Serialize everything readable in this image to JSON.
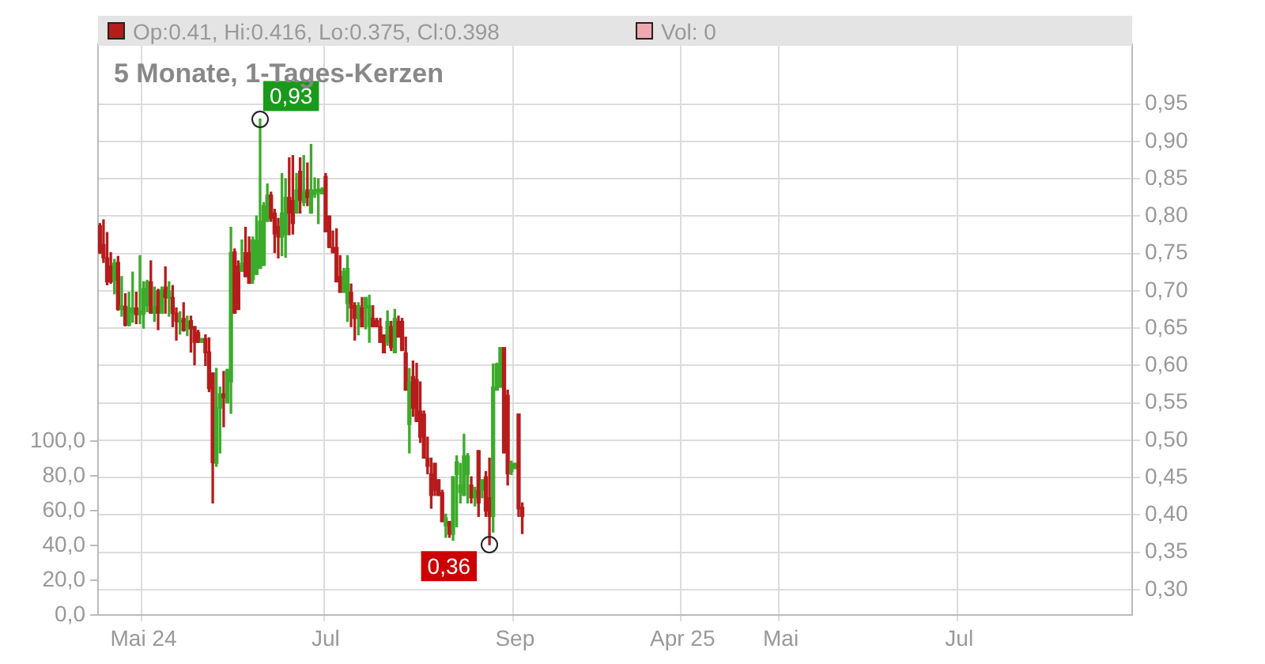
{
  "chart_data": {
    "type": "candlestick",
    "title": "5 Monate, 1-Tages-Kerzen",
    "categories": [
      null,
      null,
      null,
      null,
      null,
      null,
      null,
      null,
      null,
      null,
      null,
      null,
      "Mai 24",
      null,
      null,
      null,
      null,
      null,
      null,
      null,
      null,
      null,
      null,
      null,
      null,
      null,
      null,
      null,
      null,
      null,
      null,
      null,
      null,
      null,
      null,
      null,
      null,
      null,
      null,
      null,
      null,
      null,
      null,
      null,
      null,
      null,
      null,
      null,
      null,
      null,
      null,
      null,
      null,
      null,
      null,
      null,
      null,
      null,
      null,
      null,
      null,
      null,
      "Jul",
      null,
      null,
      null,
      null,
      null,
      null,
      null,
      null,
      null,
      null,
      null,
      null,
      null,
      null,
      null,
      null,
      null,
      null,
      null,
      null,
      null,
      null,
      null,
      null,
      null,
      null,
      null,
      null,
      null,
      null,
      null,
      null,
      null,
      null,
      null,
      null,
      null,
      null,
      null,
      null,
      null,
      null,
      null,
      null,
      null,
      null,
      null,
      null,
      null,
      null,
      null,
      "Sep",
      null,
      null,
      null,
      null,
      null,
      null,
      null,
      null,
      null,
      null,
      null,
      null,
      null,
      null,
      null,
      null,
      null,
      null,
      null,
      null,
      null,
      null,
      null,
      null,
      null,
      null,
      null,
      null,
      null,
      null,
      null,
      null,
      null,
      null,
      null,
      null,
      null,
      null,
      null,
      null,
      null,
      null,
      null,
      null,
      null,
      "Apr 25",
      null,
      null,
      null,
      null,
      null,
      null,
      null,
      null,
      null,
      null,
      null,
      null,
      null,
      null,
      null,
      null,
      null,
      null,
      null,
      null,
      null,
      null,
      null,
      null,
      null,
      null,
      "Mai",
      null,
      null,
      null,
      null,
      null,
      null,
      null,
      null,
      null,
      null,
      null,
      null,
      null,
      null,
      null,
      null,
      null,
      null,
      null,
      null,
      null,
      null,
      null,
      null,
      null,
      null,
      null,
      null,
      null,
      null,
      null,
      null,
      null,
      null,
      null,
      null,
      null,
      null,
      null,
      null,
      null,
      null,
      null,
      null,
      null,
      null,
      null,
      null,
      "Jul",
      null,
      null,
      null,
      null,
      null,
      null,
      null,
      null,
      null,
      null,
      null,
      null,
      null,
      null,
      null,
      null,
      null,
      null,
      null,
      null,
      null,
      null,
      null,
      null,
      null,
      null,
      null,
      null,
      null,
      null,
      null,
      null,
      null,
      null,
      null,
      null,
      null,
      null,
      null,
      null,
      null,
      null,
      null,
      null,
      null,
      null,
      null
    ],
    "ohlc": [
      [
        0.787,
        0.79,
        0.75,
        0.751
      ],
      [
        0.762,
        0.795,
        0.738,
        0.744
      ],
      [
        0.744,
        0.778,
        0.708,
        0.712
      ],
      [
        0.733,
        0.751,
        0.71,
        0.712
      ],
      [
        0.714,
        0.742,
        0.696,
        0.737
      ],
      [
        0.738,
        0.746,
        0.674,
        0.675
      ],
      [
        0.675,
        0.719,
        0.666,
        0.68
      ],
      [
        0.679,
        0.696,
        0.653,
        0.654
      ],
      [
        0.654,
        0.698,
        0.653,
        0.677
      ],
      [
        0.67,
        0.725,
        0.658,
        0.677
      ],
      [
        0.677,
        0.698,
        0.656,
        0.668
      ],
      [
        0.668,
        0.747,
        0.656,
        0.673
      ],
      [
        0.669,
        0.712,
        0.65,
        0.703
      ],
      [
        0.68,
        0.714,
        0.672,
        0.712
      ],
      [
        0.712,
        0.74,
        0.67,
        0.67
      ],
      [
        0.67,
        0.705,
        0.659,
        0.679
      ],
      [
        0.7,
        0.702,
        0.648,
        0.67
      ],
      [
        0.67,
        0.705,
        0.67,
        0.701
      ],
      [
        0.705,
        0.732,
        0.67,
        0.691
      ],
      [
        0.69,
        0.712,
        0.666,
        0.7
      ],
      [
        0.691,
        0.707,
        0.652,
        0.67
      ],
      [
        0.67,
        0.677,
        0.634,
        0.659
      ],
      [
        0.658,
        0.672,
        0.642,
        0.66
      ],
      [
        0.663,
        0.684,
        0.646,
        0.647
      ],
      [
        0.649,
        0.666,
        0.64,
        0.659
      ],
      [
        0.66,
        0.666,
        0.618,
        0.649
      ],
      [
        0.652,
        0.652,
        0.601,
        0.631
      ],
      [
        0.644,
        0.647,
        0.631,
        0.631
      ],
      [
        0.631,
        0.636,
        0.631,
        0.636
      ],
      [
        0.636,
        0.641,
        0.6,
        0.617
      ],
      [
        0.618,
        0.637,
        0.565,
        0.569
      ],
      [
        0.59,
        0.59,
        0.416,
        0.47
      ],
      [
        0.469,
        0.596,
        0.465,
        0.543
      ],
      [
        0.543,
        0.571,
        0.483,
        0.562
      ],
      [
        0.562,
        0.592,
        0.518,
        0.557
      ],
      [
        0.55,
        0.595,
        0.55,
        0.594
      ],
      [
        0.578,
        0.785,
        0.536,
        0.751
      ],
      [
        0.752,
        0.756,
        0.67,
        0.67
      ],
      [
        0.733,
        0.74,
        0.675,
        0.675
      ],
      [
        0.726,
        0.768,
        0.726,
        0.737
      ],
      [
        0.751,
        0.785,
        0.719,
        0.719
      ],
      [
        0.751,
        0.772,
        0.71,
        0.71
      ],
      [
        0.715,
        0.772,
        0.71,
        0.768
      ],
      [
        0.722,
        0.8,
        0.722,
        0.768
      ],
      [
        0.73,
        0.93,
        0.73,
        0.793
      ],
      [
        0.734,
        0.818,
        0.734,
        0.814
      ],
      [
        0.793,
        0.843,
        0.793,
        0.828
      ],
      [
        0.828,
        0.832,
        0.793,
        0.797
      ],
      [
        0.804,
        0.809,
        0.751,
        0.776
      ],
      [
        0.786,
        0.797,
        0.744,
        0.772
      ],
      [
        0.772,
        0.857,
        0.747,
        0.804
      ],
      [
        0.775,
        0.85,
        0.745,
        0.825
      ],
      [
        0.825,
        0.878,
        0.775,
        0.804
      ],
      [
        0.821,
        0.881,
        0.776,
        0.79
      ],
      [
        0.804,
        0.857,
        0.804,
        0.835
      ],
      [
        0.86,
        0.878,
        0.804,
        0.821
      ],
      [
        0.818,
        0.881,
        0.814,
        0.832
      ],
      [
        0.835,
        0.871,
        0.814,
        0.825
      ],
      [
        0.804,
        0.896,
        0.804,
        0.835
      ],
      [
        0.829,
        0.851,
        0.825,
        0.835
      ],
      [
        0.832,
        0.85,
        0.79,
        0.836
      ],
      [
        0.83,
        0.838,
        0.83,
        0.836
      ],
      [
        0.853,
        0.857,
        0.779,
        0.779
      ],
      [
        0.8,
        0.8,
        0.758,
        0.758
      ],
      [
        0.758,
        0.78,
        0.751,
        0.751
      ],
      [
        0.758,
        0.783,
        0.712,
        0.712
      ],
      [
        0.719,
        0.747,
        0.698,
        0.698
      ],
      [
        0.698,
        0.73,
        0.698,
        0.726
      ],
      [
        0.683,
        0.747,
        0.659,
        0.73
      ],
      [
        0.698,
        0.709,
        0.652,
        0.677
      ],
      [
        0.68,
        0.684,
        0.634,
        0.663
      ],
      [
        0.663,
        0.684,
        0.641,
        0.68
      ],
      [
        0.677,
        0.691,
        0.652,
        0.652
      ],
      [
        0.677,
        0.691,
        0.649,
        0.691
      ],
      [
        0.652,
        0.694,
        0.631,
        0.68
      ],
      [
        0.663,
        0.68,
        0.652,
        0.652
      ],
      [
        0.66,
        0.663,
        0.652,
        0.652
      ],
      [
        0.652,
        0.663,
        0.631,
        0.631
      ],
      [
        0.641,
        0.641,
        0.617,
        0.617
      ],
      [
        0.631,
        0.673,
        0.627,
        0.659
      ],
      [
        0.652,
        0.659,
        0.62,
        0.624
      ],
      [
        0.617,
        0.675,
        0.617,
        0.663
      ],
      [
        0.659,
        0.666,
        0.638,
        0.638
      ],
      [
        0.659,
        0.663,
        0.62,
        0.62
      ],
      [
        0.617,
        0.638,
        0.567,
        0.567
      ],
      [
        0.521,
        0.596,
        0.483,
        0.578
      ],
      [
        0.585,
        0.606,
        0.532,
        0.543
      ],
      [
        0.581,
        0.603,
        0.525,
        0.525
      ],
      [
        0.539,
        0.578,
        0.497,
        0.504
      ],
      [
        0.535,
        0.539,
        0.476,
        0.476
      ],
      [
        0.476,
        0.504,
        0.455,
        0.465
      ],
      [
        0.455,
        0.476,
        0.409,
        0.426
      ],
      [
        0.469,
        0.469,
        0.426,
        0.433
      ],
      [
        0.447,
        0.447,
        0.426,
        0.426
      ],
      [
        0.43,
        0.433,
        0.391,
        0.391
      ],
      [
        0.385,
        0.401,
        0.37,
        0.396
      ],
      [
        0.391,
        0.391,
        0.37,
        0.374
      ],
      [
        0.374,
        0.451,
        0.366,
        0.451
      ],
      [
        0.454,
        0.479,
        0.384,
        0.471
      ],
      [
        0.43,
        0.469,
        0.416,
        0.44
      ],
      [
        0.426,
        0.508,
        0.426,
        0.479
      ],
      [
        0.454,
        0.482,
        0.416,
        0.479
      ],
      [
        0.44,
        0.451,
        0.416,
        0.423
      ],
      [
        0.423,
        0.437,
        0.412,
        0.433
      ],
      [
        0.486,
        0.486,
        0.398,
        0.416
      ],
      [
        0.433,
        0.447,
        0.423,
        0.447
      ],
      [
        0.451,
        0.458,
        0.398,
        0.405
      ],
      [
        0.423,
        0.476,
        0.36,
        0.398
      ],
      [
        0.398,
        0.602,
        0.377,
        0.571
      ],
      [
        0.567,
        0.603,
        0.567,
        0.602
      ],
      [
        0.571,
        0.624,
        0.571,
        0.624
      ],
      [
        0.624,
        0.624,
        0.483,
        0.483
      ],
      [
        0.56,
        0.567,
        0.44,
        0.455
      ],
      [
        0.458,
        0.472,
        0.454,
        0.469
      ],
      [
        0.462,
        0.469,
        0.462,
        0.469
      ],
      [
        0.535,
        0.535,
        0.398,
        0.408
      ],
      [
        0.41,
        0.416,
        0.375,
        0.398
      ],
      null,
      null,
      null,
      null,
      null,
      null,
      null,
      null,
      null,
      null,
      null,
      null,
      null,
      null,
      null,
      null,
      null,
      null,
      null,
      null,
      null,
      null,
      null,
      null,
      null,
      null,
      null,
      null,
      null,
      null,
      null,
      null,
      null,
      null,
      null,
      null,
      null,
      null,
      null,
      null,
      null,
      null,
      null,
      null,
      null,
      null,
      null,
      null,
      null,
      null,
      null,
      null,
      null,
      null,
      null,
      null,
      null,
      null,
      null,
      null,
      null,
      null,
      null,
      null,
      null,
      null,
      null,
      null,
      null,
      null,
      null,
      null,
      null,
      null,
      null,
      null,
      null,
      null,
      null,
      null,
      null,
      null,
      null,
      null,
      null,
      null,
      null,
      null,
      null,
      null,
      null,
      null,
      null,
      null,
      null,
      null,
      null,
      null,
      null,
      null,
      null,
      null,
      null,
      null,
      null,
      null,
      null,
      null,
      null,
      null,
      null,
      null,
      null,
      null,
      null,
      null,
      null,
      null,
      null,
      null,
      null,
      null,
      null,
      null,
      null,
      null,
      null,
      null,
      null,
      null,
      null,
      null,
      null,
      null,
      null,
      null,
      null,
      null,
      null,
      null,
      null,
      null,
      null,
      null,
      null,
      null,
      null,
      null,
      null,
      null,
      null,
      null,
      null,
      null,
      null,
      null,
      null,
      null,
      null,
      null,
      null,
      null,
      null,
      null,
      null,
      null,
      null
    ],
    "colors": [
      "#b71c1c",
      "#b71c1c",
      "#b71c1c",
      "#b71c1c",
      "#3cab2b",
      "#b71c1c",
      "#3cab2b",
      "#b71c1c",
      "#3cab2b",
      "#3cab2b",
      "#b71c1c",
      "#3cab2b",
      "#3cab2b",
      "#3cab2b",
      "#b71c1c",
      "#3cab2b",
      "#b71c1c",
      "#3cab2b",
      "#b71c1c",
      "#3cab2b",
      "#b71c1c",
      "#b71c1c",
      "#3cab2b",
      "#b71c1c",
      "#3cab2b",
      "#b71c1c",
      "#b71c1c",
      "#b71c1c",
      "#3cab2b",
      "#b71c1c",
      "#b71c1c",
      "#b71c1c",
      "#3cab2b",
      "#3cab2b",
      "#b71c1c",
      "#3cab2b",
      "#3cab2b",
      "#b71c1c",
      "#b71c1c",
      "#3cab2b",
      "#b71c1c",
      "#b71c1c",
      "#3cab2b",
      "#3cab2b",
      "#3cab2b",
      "#3cab2b",
      "#3cab2b",
      "#b71c1c",
      "#b71c1c",
      "#b71c1c",
      "#3cab2b",
      "#3cab2b",
      "#b71c1c",
      "#b71c1c",
      "#3cab2b",
      "#b71c1c",
      "#3cab2b",
      "#b71c1c",
      "#3cab2b",
      "#3cab2b",
      "#3cab2b",
      "#3cab2b",
      "#b71c1c",
      "#b71c1c",
      "#b71c1c",
      "#b71c1c",
      "#b71c1c",
      "#3cab2b",
      "#3cab2b",
      "#b71c1c",
      "#b71c1c",
      "#3cab2b",
      "#b71c1c",
      "#3cab2b",
      "#3cab2b",
      "#b71c1c",
      "#b71c1c",
      "#b71c1c",
      "#b71c1c",
      "#3cab2b",
      "#b71c1c",
      "#3cab2b",
      "#b71c1c",
      "#b71c1c",
      "#b71c1c",
      "#3cab2b",
      "#b71c1c",
      "#b71c1c",
      "#b71c1c",
      "#b71c1c",
      "#b71c1c",
      "#b71c1c",
      "#b71c1c",
      "#b71c1c",
      "#b71c1c",
      "#3cab2b",
      "#b71c1c",
      "#3cab2b",
      "#3cab2b",
      "#3cab2b",
      "#3cab2b",
      "#3cab2b",
      "#b71c1c",
      "#3cab2b",
      "#b71c1c",
      "#3cab2b",
      "#b71c1c",
      "#b71c1c",
      "#3cab2b",
      "#3cab2b",
      "#3cab2b",
      "#b71c1c",
      "#b71c1c",
      "#3cab2b",
      "#3cab2b",
      "#b71c1c",
      "#b71c1c",
      null,
      null,
      null,
      null,
      null,
      null,
      null,
      null,
      null,
      null,
      null,
      null,
      null,
      null,
      null,
      null,
      null,
      null,
      null,
      null,
      null,
      null,
      null,
      null,
      null,
      null,
      null,
      null,
      null,
      null,
      null,
      null,
      null,
      null,
      null,
      null,
      null,
      null,
      null,
      null,
      null,
      null,
      null,
      null,
      null,
      null,
      null,
      null,
      null,
      null,
      null,
      null,
      null,
      null,
      null,
      null,
      null,
      null,
      null,
      null,
      null,
      null,
      null,
      null,
      null,
      null,
      null,
      null,
      null,
      null,
      null,
      null,
      null,
      null,
      null,
      null,
      null,
      null,
      null,
      null,
      null,
      null,
      null,
      null,
      null,
      null,
      null,
      null,
      null,
      null,
      null,
      null,
      null,
      null,
      null,
      null,
      null,
      null,
      null,
      null,
      null,
      null,
      null,
      null,
      null,
      null,
      null,
      null,
      null,
      null,
      null,
      null,
      null,
      null,
      null,
      null,
      null,
      null,
      null,
      null,
      null,
      null,
      null,
      null,
      null,
      null,
      null,
      null,
      null,
      null,
      null,
      null,
      null,
      null,
      null,
      null,
      null,
      null,
      null,
      null,
      null,
      null,
      null,
      null,
      null,
      null,
      null,
      null,
      null,
      null,
      null,
      null,
      null,
      null,
      null,
      null,
      null,
      null,
      null,
      null,
      null,
      null,
      null,
      null,
      null,
      null,
      null
    ],
    "ylim": [
      0.266,
      1.03
    ],
    "yticks": [
      {
        "value": 0.3,
        "label": "0,30"
      },
      {
        "value": 0.35,
        "label": "0,35"
      },
      {
        "value": 0.4,
        "label": "0,40"
      },
      {
        "value": 0.45,
        "label": "0,45"
      },
      {
        "value": 0.5,
        "label": "0,50"
      },
      {
        "value": 0.55,
        "label": "0,55"
      },
      {
        "value": 0.6,
        "label": "0,60"
      },
      {
        "value": 0.65,
        "label": "0,65"
      },
      {
        "value": 0.7,
        "label": "0,70"
      },
      {
        "value": 0.75,
        "label": "0,75"
      },
      {
        "value": 0.8,
        "label": "0,80"
      },
      {
        "value": 0.85,
        "label": "0,85"
      },
      {
        "value": 0.9,
        "label": "0,90"
      },
      {
        "value": 0.95,
        "label": "0,95"
      }
    ],
    "y2lim": [
      0,
      328
    ],
    "y2ticks": [
      {
        "value": 0,
        "label": "0,0"
      },
      {
        "value": 20,
        "label": "20,0"
      },
      {
        "value": 40,
        "label": "40,0"
      },
      {
        "value": 60,
        "label": "60,0"
      },
      {
        "value": 80,
        "label": "80,0"
      },
      {
        "value": 100,
        "label": "100,0"
      }
    ],
    "grid": true,
    "annotations": [
      "Op:0.41, Hi:0.416, Lo:0.375, Cl:0.398",
      "Vol: 0",
      "0,93",
      "0,36"
    ]
  }
}
